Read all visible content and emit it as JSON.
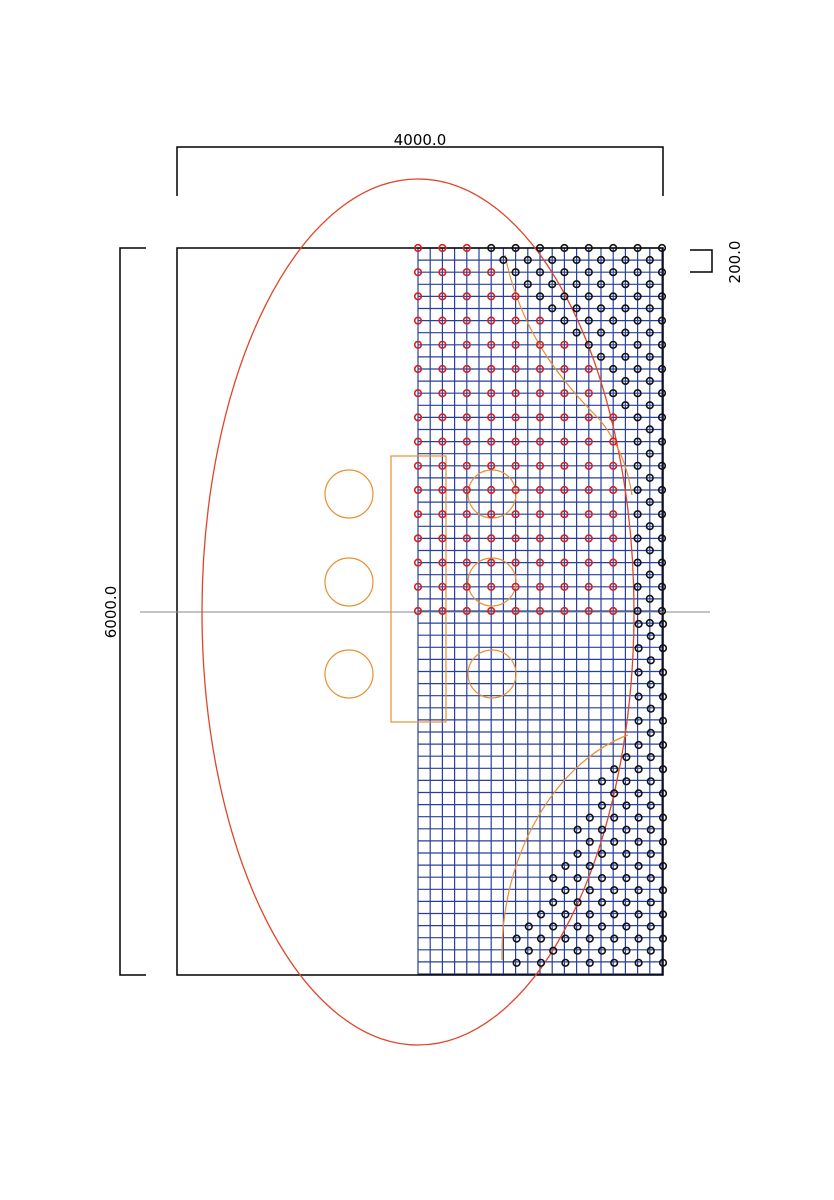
{
  "dimensions": {
    "width": "4000.0",
    "height": "6000.0",
    "spacing": "200.0"
  }
}
